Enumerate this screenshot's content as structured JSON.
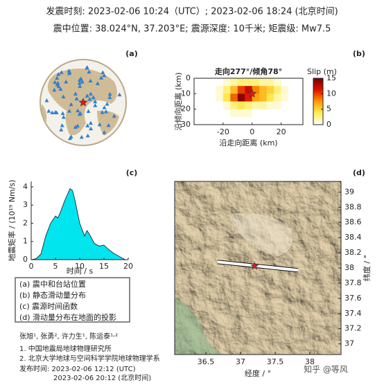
{
  "header": {
    "line1": "发震时刻: 2023-02-06 10:24（UTC）;   2023-02-06  18:24 (北京时间)",
    "line2": "震中位置: 38.024°N,  37.203°E;   震源深度: 10千米; 矩震级: Mw7.5"
  },
  "chart_data": [
    {
      "type": "globe",
      "label": "(a)"
    },
    {
      "type": "heatmap",
      "label": "(b)",
      "title": "走向277°/倾角78°",
      "xlabel": "沿走向距离 (km)",
      "ylabel": "沿倾向距离 (km)",
      "x": [
        -27.5,
        -22.5,
        -17.5,
        -12.5,
        -7.5,
        -2.5,
        2.5,
        7.5,
        12.5,
        17.5,
        22.5,
        27.5
      ],
      "y": [
        2.5,
        7.5,
        12.5,
        17.5,
        22.5,
        27.5
      ],
      "z": [
        [
          0,
          0,
          1,
          2,
          3,
          3,
          3,
          2,
          2,
          1,
          0,
          0
        ],
        [
          0,
          1,
          3,
          6,
          10,
          12,
          8,
          6,
          5,
          3,
          1,
          0
        ],
        [
          0,
          1,
          4,
          9,
          14,
          11,
          7,
          6,
          4,
          2,
          1,
          0
        ],
        [
          0,
          0,
          1,
          3,
          4,
          3,
          2,
          2,
          1,
          1,
          0,
          0
        ],
        [
          0,
          0,
          0,
          1,
          1,
          1,
          0,
          0,
          0,
          0,
          0,
          0
        ],
        [
          0,
          0,
          0,
          0,
          0,
          0,
          0,
          0,
          0,
          0,
          0,
          0
        ]
      ],
      "star": {
        "x": 0,
        "y": 10
      },
      "xlim": [
        -40,
        35
      ],
      "xticks": [
        -20,
        0,
        20
      ],
      "ylim": [
        0,
        30
      ],
      "yticks": [
        0,
        10,
        20,
        30
      ],
      "colorbar": {
        "label": "Slip (m)",
        "lim": [
          0,
          15
        ],
        "ticks": [
          0,
          5,
          10,
          15
        ]
      }
    },
    {
      "type": "area",
      "label": "(c)",
      "xlabel": "时间 / s",
      "ylabel": "地震矩率 / (10¹⁹ Nm/s)",
      "color": "#00e5ee",
      "x": [
        0,
        1,
        2,
        3,
        4,
        5,
        5.5,
        6,
        7,
        7.5,
        8,
        8.5,
        9,
        10,
        11,
        11.5,
        12,
        13,
        14,
        15,
        16,
        17,
        18,
        19,
        19.5
      ],
      "values": [
        0,
        0.05,
        0.3,
        1.3,
        2.0,
        2.4,
        2.3,
        2.6,
        3.3,
        3.6,
        3.9,
        3.8,
        3.3,
        2.0,
        1.3,
        1.6,
        1.4,
        0.9,
        0.75,
        0.8,
        0.55,
        0.35,
        0.2,
        0.05,
        0
      ],
      "xlim": [
        0,
        20
      ],
      "xticks": [
        0,
        5,
        10,
        15,
        20
      ],
      "ylim": [
        0,
        4.3
      ],
      "yticks": [
        0,
        1,
        2,
        3,
        4
      ]
    },
    {
      "type": "map",
      "label": "(d)",
      "xlabel": "经度 / °",
      "ylabel": "纬度 / °",
      "xlim": [
        36.05,
        38.45
      ],
      "xticks": [
        36.5,
        37,
        37.5,
        38
      ],
      "ylim": [
        36.86,
        39.14
      ],
      "yticks": [
        37,
        37.2,
        37.4,
        37.6,
        37.8,
        38,
        38.2,
        38.4,
        38.6,
        38.8,
        39
      ],
      "fault": {
        "lon": [
          36.67,
          37.83
        ],
        "lat": [
          38.08,
          37.97
        ]
      },
      "epicenter": {
        "lon": 37.203,
        "lat": 38.024
      },
      "watermark": "知乎 @等风"
    }
  ],
  "legend_box": [
    "(a) 震中和台站位置",
    "(b) 静态滑动量分布",
    "(c) 震源时间函数",
    "(d) 滑动量分布在地面的投影"
  ],
  "credits": [
    "张旭¹, 张勇², 许力生¹, 陈运泰¹˒²",
    "1. 中国地震局地球物理研究所",
    "2. 北京大学地球与空间科学学院地球物理学系",
    "发布时间:  2023-02-06  12:12 (UTC)",
    "2023-02-06  20:12 (北京时间)"
  ]
}
